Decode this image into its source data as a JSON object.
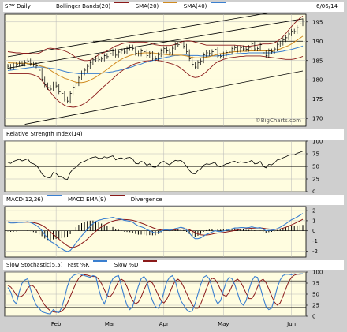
{
  "chart_data": {
    "type": "line",
    "symbol_label": "SPY Daily",
    "date_label": "6/06/14",
    "watermark": "©BigCharts.com",
    "x_labels": [
      "Feb",
      "Mar",
      "Apr",
      "May",
      "Jun"
    ],
    "colors": {
      "price": "#000000",
      "bollinger": "#8b1a1a",
      "sma20": "#d08a20",
      "sma40": "#3a7fd0",
      "trend": "#000000",
      "red": "#8b1a1a",
      "blue": "#3a7fd0"
    },
    "panels": {
      "price": {
        "legend": [
          "Bollinger Bands(20)",
          "SMA(20)",
          "SMA(40)"
        ],
        "yticks": [
          170,
          175,
          180,
          185,
          190,
          195
        ],
        "ylim": [
          168,
          197
        ],
        "close": [
          183.5,
          183.2,
          183.8,
          184.0,
          184.3,
          184.1,
          184.5,
          184.9,
          184.2,
          184.0,
          183.6,
          182.5,
          180.2,
          178.7,
          178.0,
          177.6,
          178.9,
          178.4,
          176.9,
          176.5,
          175.0,
          174.5,
          176.5,
          178.1,
          179.0,
          180.5,
          181.8,
          182.5,
          183.5,
          184.5,
          185.2,
          185.6,
          185.3,
          185.4,
          186.3,
          186.0,
          186.8,
          187.5,
          186.4,
          187.2,
          187.6,
          187.2,
          188.1,
          188.5,
          188.1,
          186.9,
          186.7,
          187.5,
          187.3,
          186.3,
          186.8,
          185.6,
          185.5,
          186.5,
          187.5,
          188.1,
          187.5,
          187.0,
          188.2,
          189.2,
          189.1,
          189.5,
          188.7,
          187.3,
          185.5,
          184.0,
          183.3,
          184.5,
          184.9,
          186.5,
          187.0,
          186.8,
          187.3,
          187.9,
          186.2,
          186.1,
          186.7,
          187.1,
          187.2,
          188.1,
          188.3,
          187.7,
          188.3,
          188.0,
          187.9,
          188.4,
          189.3,
          188.0,
          188.1,
          189.1,
          187.0,
          186.3,
          187.5,
          187.3,
          188.0,
          189.2,
          189.5,
          190.4,
          190.9,
          191.9,
          192.6,
          192.5,
          193.5,
          194.5,
          195.3
        ],
        "bb_upper": [
          187.3,
          187.2,
          187.1,
          187.0,
          187.0,
          186.9,
          186.9,
          186.9,
          186.8,
          186.8,
          186.8,
          186.9,
          187.3,
          187.8,
          188.1,
          188.2,
          188.1,
          188.0,
          187.9,
          187.7,
          187.5,
          187.2,
          186.8,
          186.3,
          185.8,
          185.4,
          185.2,
          185.0,
          185.0,
          185.1,
          185.5,
          186.0,
          186.5,
          186.8,
          187.1,
          187.5,
          187.9,
          188.4,
          188.8,
          189.0,
          189.3,
          189.5,
          189.6,
          189.7,
          189.7,
          189.8,
          189.8,
          189.8,
          189.8,
          189.7,
          189.5,
          189.3,
          189.1,
          189.0,
          188.9,
          188.9,
          188.9,
          188.9,
          189.0,
          189.2,
          189.5,
          189.8,
          190.0,
          190.1,
          190.1,
          190.0,
          189.8,
          189.6,
          189.4,
          189.2,
          189.0,
          189.0,
          189.0,
          189.0,
          189.0,
          189.0,
          189.0,
          189.0,
          189.0,
          189.0,
          189.0,
          188.9,
          188.9,
          188.8,
          188.7,
          188.7,
          188.8,
          188.9,
          189.0,
          189.2,
          189.3,
          189.3,
          189.3,
          189.4,
          189.6,
          190.0,
          190.5,
          191.2,
          192.0,
          192.9,
          193.8,
          194.6,
          195.3,
          196.0,
          196.5
        ],
        "bb_lower": [
          181.7,
          181.6,
          181.6,
          181.6,
          181.6,
          181.6,
          181.6,
          181.6,
          181.5,
          181.3,
          181.0,
          180.6,
          179.8,
          178.9,
          177.8,
          176.8,
          175.9,
          175.1,
          174.4,
          173.9,
          173.4,
          173.1,
          173.0,
          172.9,
          173.0,
          173.2,
          173.5,
          173.9,
          174.4,
          175.0,
          175.6,
          176.3,
          177.0,
          177.7,
          178.4,
          179.0,
          179.7,
          180.3,
          181.0,
          181.7,
          182.2,
          182.7,
          183.1,
          183.5,
          183.9,
          184.2,
          184.4,
          184.6,
          184.8,
          184.9,
          185.0,
          185.1,
          185.1,
          185.0,
          184.9,
          184.7,
          184.5,
          184.3,
          184.1,
          183.8,
          183.5,
          183.0,
          182.4,
          181.8,
          181.2,
          180.8,
          180.6,
          180.7,
          181.0,
          181.5,
          182.1,
          182.8,
          183.5,
          184.2,
          184.7,
          185.0,
          185.3,
          185.5,
          185.7,
          185.8,
          185.9,
          186.0,
          186.1,
          186.1,
          186.2,
          186.2,
          186.2,
          186.2,
          186.2,
          186.2,
          186.1,
          186.0,
          185.9,
          185.8,
          185.7,
          185.6,
          185.5,
          185.4,
          185.3,
          185.3,
          185.3,
          185.4,
          185.6,
          185.8,
          186.1
        ],
        "sma20": [
          184.5,
          184.4,
          184.4,
          184.3,
          184.3,
          184.3,
          184.3,
          184.2,
          184.2,
          184.1,
          183.9,
          183.7,
          183.5,
          183.3,
          183.0,
          182.5,
          182.0,
          181.6,
          181.1,
          180.8,
          180.4,
          180.2,
          179.9,
          179.6,
          179.4,
          179.3,
          179.3,
          179.4,
          179.6,
          179.9,
          180.3,
          180.7,
          181.2,
          181.7,
          182.2,
          182.7,
          183.3,
          183.8,
          184.4,
          184.9,
          185.3,
          185.7,
          186.0,
          186.3,
          186.5,
          186.7,
          186.8,
          186.9,
          187.0,
          187.0,
          187.0,
          187.0,
          186.9,
          186.8,
          186.7,
          186.6,
          186.5,
          186.4,
          186.4,
          186.4,
          186.4,
          186.4,
          186.3,
          186.2,
          186.0,
          185.8,
          185.7,
          185.7,
          185.7,
          185.8,
          185.9,
          186.0,
          186.2,
          186.4,
          186.6,
          186.8,
          186.9,
          187.0,
          187.1,
          187.2,
          187.3,
          187.3,
          187.4,
          187.4,
          187.4,
          187.5,
          187.5,
          187.5,
          187.5,
          187.5,
          187.5,
          187.5,
          187.5,
          187.5,
          187.6,
          187.8,
          188.0,
          188.3,
          188.6,
          188.9,
          189.3,
          189.8,
          190.3,
          190.8,
          191.3
        ],
        "sma40": [
          182.4,
          182.5,
          182.6,
          182.7,
          182.8,
          182.9,
          183.0,
          183.1,
          183.2,
          183.3,
          183.3,
          183.3,
          183.3,
          183.2,
          183.1,
          183.0,
          182.9,
          182.8,
          182.6,
          182.4,
          182.2,
          182.0,
          181.9,
          181.8,
          181.7,
          181.6,
          181.6,
          181.6,
          181.6,
          181.6,
          181.6,
          181.6,
          181.6,
          181.7,
          181.8,
          181.9,
          182.0,
          182.1,
          182.3,
          182.4,
          182.6,
          182.8,
          183.0,
          183.2,
          183.4,
          183.7,
          183.9,
          184.1,
          184.4,
          184.6,
          184.8,
          185.0,
          185.2,
          185.4,
          185.5,
          185.7,
          185.9,
          186.0,
          186.2,
          186.3,
          186.3,
          186.4,
          186.4,
          186.4,
          186.3,
          186.3,
          186.3,
          186.3,
          186.2,
          186.2,
          186.2,
          186.2,
          186.2,
          186.2,
          186.2,
          186.3,
          186.3,
          186.4,
          186.5,
          186.6,
          186.7,
          186.8,
          186.8,
          186.9,
          186.9,
          187.0,
          187.0,
          187.0,
          187.0,
          187.0,
          187.0,
          187.0,
          187.0,
          187.0,
          187.1,
          187.2,
          187.3,
          187.4,
          187.6,
          187.7,
          187.9,
          188.1,
          188.3,
          188.5,
          188.8
        ],
        "trend_lines": [
          {
            "from": [
              0,
              183.0
            ],
            "to": [
              104,
              195.8
            ]
          },
          {
            "from": [
              0,
              186.0
            ],
            "to": [
              104,
              198.8
            ]
          },
          {
            "from": [
              6,
              168.5
            ],
            "to": [
              104,
              182.3
            ]
          },
          {
            "from": [
              30,
              190.0
            ],
            "to": [
              104,
              190.0
            ]
          }
        ]
      },
      "rsi": {
        "legend": "Relative Strength Index(14)",
        "yticks": [
          0,
          25,
          50,
          75,
          100
        ],
        "ylim": [
          0,
          100
        ],
        "reference": 50,
        "values": [
          58,
          56,
          60,
          62,
          64,
          61,
          63,
          65,
          57,
          55,
          52,
          45,
          35,
          30,
          28,
          27,
          38,
          36,
          30,
          30,
          25,
          24,
          38,
          45,
          48,
          54,
          58,
          60,
          63,
          66,
          68,
          69,
          66,
          66,
          69,
          67,
          69,
          71,
          63,
          66,
          67,
          64,
          67,
          68,
          65,
          56,
          55,
          60,
          58,
          52,
          55,
          49,
          48,
          53,
          58,
          60,
          56,
          53,
          58,
          62,
          61,
          62,
          57,
          50,
          42,
          36,
          35,
          42,
          45,
          52,
          55,
          54,
          56,
          58,
          50,
          49,
          52,
          55,
          56,
          59,
          60,
          57,
          59,
          58,
          57,
          59,
          62,
          55,
          56,
          60,
          50,
          47,
          54,
          53,
          57,
          63,
          64,
          67,
          69,
          72,
          73,
          73,
          76,
          78,
          80
        ]
      },
      "macd": {
        "legend": [
          "MACD(12,26)",
          "MACD EMA(9)",
          "Divergence"
        ],
        "yticks": [
          -2,
          -1,
          0,
          1,
          2
        ],
        "ylim": [
          -2.6,
          2.4
        ],
        "macd": [
          0.85,
          0.78,
          0.78,
          0.8,
          0.84,
          0.83,
          0.86,
          0.91,
          0.82,
          0.7,
          0.54,
          0.32,
          0.02,
          -0.38,
          -0.75,
          -1.05,
          -1.2,
          -1.38,
          -1.62,
          -1.78,
          -1.95,
          -2.05,
          -1.95,
          -1.62,
          -1.22,
          -0.85,
          -0.5,
          -0.18,
          0.15,
          0.45,
          0.72,
          0.92,
          1.05,
          1.12,
          1.2,
          1.22,
          1.28,
          1.34,
          1.25,
          1.2,
          1.16,
          1.05,
          1.0,
          0.95,
          0.85,
          0.65,
          0.48,
          0.4,
          0.3,
          0.1,
          0.02,
          -0.12,
          -0.22,
          -0.18,
          -0.05,
          0.08,
          0.1,
          0.05,
          0.12,
          0.22,
          0.28,
          0.35,
          0.28,
          0.08,
          -0.22,
          -0.55,
          -0.78,
          -0.78,
          -0.7,
          -0.52,
          -0.35,
          -0.25,
          -0.12,
          0.02,
          -0.05,
          -0.08,
          -0.02,
          0.05,
          0.1,
          0.2,
          0.28,
          0.28,
          0.32,
          0.32,
          0.3,
          0.32,
          0.4,
          0.32,
          0.28,
          0.32,
          0.15,
          0.02,
          0.05,
          0.05,
          0.1,
          0.22,
          0.35,
          0.52,
          0.7,
          0.9,
          1.1,
          1.22,
          1.38,
          1.55,
          1.72
        ],
        "signal": [
          0.9,
          0.88,
          0.86,
          0.85,
          0.85,
          0.84,
          0.85,
          0.86,
          0.85,
          0.82,
          0.76,
          0.68,
          0.55,
          0.38,
          0.15,
          -0.1,
          -0.35,
          -0.58,
          -0.82,
          -1.05,
          -1.28,
          -1.48,
          -1.62,
          -1.65,
          -1.58,
          -1.45,
          -1.26,
          -1.05,
          -0.82,
          -0.56,
          -0.3,
          -0.05,
          0.2,
          0.4,
          0.58,
          0.72,
          0.85,
          0.96,
          1.04,
          1.09,
          1.12,
          1.12,
          1.11,
          1.08,
          1.04,
          0.96,
          0.86,
          0.77,
          0.67,
          0.55,
          0.44,
          0.32,
          0.21,
          0.13,
          0.09,
          0.08,
          0.08,
          0.08,
          0.09,
          0.11,
          0.14,
          0.18,
          0.2,
          0.18,
          0.1,
          -0.03,
          -0.18,
          -0.3,
          -0.39,
          -0.42,
          -0.41,
          -0.38,
          -0.33,
          -0.26,
          -0.22,
          -0.19,
          -0.16,
          -0.12,
          -0.07,
          -0.02,
          0.04,
          0.09,
          0.14,
          0.18,
          0.21,
          0.23,
          0.26,
          0.27,
          0.28,
          0.29,
          0.26,
          0.21,
          0.18,
          0.15,
          0.14,
          0.15,
          0.19,
          0.26,
          0.35,
          0.46,
          0.59,
          0.71,
          0.85,
          0.99,
          1.14
        ]
      },
      "stochastic": {
        "legend": [
          "Slow Stochastic(5,5)",
          "Fast %K",
          "Slow %D"
        ],
        "yticks": [
          0,
          25,
          50,
          75,
          100
        ],
        "ylim": [
          0,
          100
        ],
        "fast_k": [
          65,
          55,
          35,
          28,
          55,
          75,
          82,
          85,
          60,
          40,
          25,
          18,
          10,
          8,
          6,
          5,
          15,
          10,
          8,
          20,
          42,
          68,
          85,
          92,
          95,
          96,
          94,
          92,
          90,
          88,
          92,
          90,
          62,
          40,
          28,
          45,
          72,
          85,
          90,
          92,
          70,
          45,
          25,
          15,
          22,
          45,
          68,
          85,
          90,
          80,
          55,
          35,
          22,
          18,
          30,
          55,
          78,
          88,
          92,
          80,
          55,
          35,
          25,
          15,
          10,
          12,
          28,
          50,
          72,
          88,
          92,
          85,
          65,
          40,
          28,
          35,
          58,
          78,
          88,
          85,
          72,
          52,
          32,
          25,
          35,
          60,
          80,
          90,
          88,
          65,
          42,
          22,
          15,
          18,
          40,
          65,
          82,
          92,
          95,
          95,
          94,
          96,
          95,
          96,
          96
        ],
        "slow_d": [
          70,
          66,
          58,
          48,
          44,
          46,
          52,
          64,
          70,
          68,
          60,
          48,
          35,
          25,
          18,
          12,
          10,
          9,
          9,
          11,
          18,
          30,
          45,
          60,
          75,
          86,
          92,
          94,
          93,
          91,
          90,
          90,
          84,
          74,
          60,
          47,
          44,
          52,
          66,
          79,
          84,
          80,
          67,
          50,
          35,
          28,
          32,
          44,
          60,
          74,
          80,
          75,
          62,
          48,
          35,
          30,
          38,
          52,
          68,
          80,
          84,
          78,
          66,
          52,
          38,
          26,
          18,
          18,
          28,
          44,
          62,
          78,
          86,
          84,
          74,
          60,
          48,
          45,
          54,
          68,
          80,
          84,
          78,
          66,
          52,
          40,
          40,
          50,
          66,
          80,
          84,
          76,
          62,
          46,
          32,
          25,
          30,
          45,
          62,
          78,
          88,
          93,
          95,
          95,
          96
        ],
        "reference_lines": [
          20,
          80
        ]
      }
    }
  }
}
